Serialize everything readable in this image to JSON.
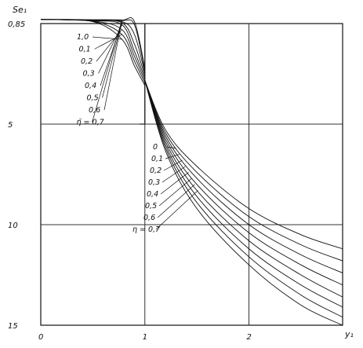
{
  "chart_data": {
    "type": "line",
    "xlabel": "y₁",
    "ylabel": "Se₁",
    "x_ticks": [
      {
        "label": "0",
        "value": 0
      },
      {
        "label": "1",
        "value": 1
      },
      {
        "label": "2",
        "value": 2
      }
    ],
    "y_ticks": [
      {
        "label": "0,85",
        "value": 0.85
      },
      {
        "label": "5",
        "value": 5
      },
      {
        "label": "10",
        "value": 10
      },
      {
        "label": "15",
        "value": 15
      }
    ],
    "xlim": [
      0,
      2.9
    ],
    "ylim": [
      0,
      15
    ],
    "y_inverted": true,
    "grid": true,
    "upper_family": {
      "labels": [
        "1,0",
        "0,1",
        "0,2",
        "0,3",
        "0,4",
        "0,5",
        "0,6",
        "η̄ = 0,7"
      ],
      "series": [
        {
          "x": [
            0,
            0.5,
            0.78,
            0.9,
            1.0
          ],
          "y": [
            0.1,
            0.5,
            1.5,
            2.6,
            3.4
          ]
        },
        {
          "x": [
            0,
            0.5,
            0.78,
            0.9,
            1.0
          ],
          "y": [
            0.1,
            0.45,
            1.3,
            2.4,
            3.3
          ]
        },
        {
          "x": [
            0,
            0.5,
            0.78,
            0.9,
            1.0
          ],
          "y": [
            0.1,
            0.4,
            1.1,
            2.2,
            3.2
          ]
        },
        {
          "x": [
            0,
            0.5,
            0.78,
            0.9,
            1.0
          ],
          "y": [
            0.1,
            0.35,
            0.9,
            2.0,
            3.1
          ]
        },
        {
          "x": [
            0,
            0.5,
            0.78,
            0.9,
            1.0
          ],
          "y": [
            0.1,
            0.3,
            0.7,
            1.7,
            3.0
          ]
        },
        {
          "x": [
            0,
            0.5,
            0.78,
            0.9,
            1.0
          ],
          "y": [
            0.1,
            0.25,
            0.5,
            1.3,
            2.9
          ]
        },
        {
          "x": [
            0,
            0.5,
            0.78,
            0.9,
            1.0
          ],
          "y": [
            0.1,
            0.2,
            0.3,
            0.9,
            2.8
          ]
        },
        {
          "x": [
            0,
            0.5,
            0.78,
            0.9,
            1.0
          ],
          "y": [
            0.1,
            0.15,
            0.2,
            0.5,
            2.7
          ]
        }
      ]
    },
    "lower_family": {
      "labels": [
        "0",
        "0,1",
        "0,2",
        "0,3",
        "0,4",
        "0,5",
        "0,6",
        "η = 0,7"
      ],
      "series": [
        {
          "x": [
            1.0,
            1.2,
            1.5,
            2.0,
            2.5,
            2.9
          ],
          "y": [
            3.2,
            5.3,
            7.1,
            9.2,
            10.5,
            11.2
          ]
        },
        {
          "x": [
            1.0,
            1.2,
            1.5,
            2.0,
            2.5,
            2.9
          ],
          "y": [
            3.2,
            5.45,
            7.4,
            9.6,
            11.0,
            11.8
          ]
        },
        {
          "x": [
            1.0,
            1.2,
            1.5,
            2.0,
            2.5,
            2.9
          ],
          "y": [
            3.2,
            5.6,
            7.7,
            10.0,
            11.5,
            12.4
          ]
        },
        {
          "x": [
            1.0,
            1.2,
            1.5,
            2.0,
            2.5,
            2.9
          ],
          "y": [
            3.2,
            5.75,
            8.0,
            10.4,
            12.0,
            13.0
          ]
        },
        {
          "x": [
            1.0,
            1.2,
            1.5,
            2.0,
            2.5,
            2.9
          ],
          "y": [
            3.2,
            5.9,
            8.3,
            10.8,
            12.5,
            13.6
          ]
        },
        {
          "x": [
            1.0,
            1.2,
            1.5,
            2.0,
            2.5,
            2.9
          ],
          "y": [
            3.2,
            6.05,
            8.6,
            11.2,
            13.0,
            14.1
          ]
        },
        {
          "x": [
            1.0,
            1.2,
            1.5,
            2.0,
            2.5,
            2.9
          ],
          "y": [
            3.2,
            6.2,
            8.9,
            11.6,
            13.5,
            14.6
          ]
        },
        {
          "x": [
            1.0,
            1.2,
            1.5,
            2.0,
            2.5,
            2.9
          ],
          "y": [
            3.2,
            6.35,
            9.2,
            12.0,
            14.0,
            15.0
          ]
        }
      ]
    }
  }
}
